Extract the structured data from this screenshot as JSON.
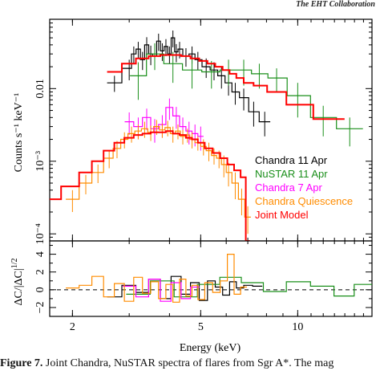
{
  "page": {
    "header_fragment": "The EHT Collaboration",
    "caption_prefix": "Figure 7.",
    "caption_text": " Joint Chandra, NuSTAR spectra of flares from Sgr A*. The mag"
  },
  "chart_data": [
    {
      "type": "line",
      "panel": "spectrum",
      "xlabel": "Energy (keV)",
      "ylabel": "Counts s⁻¹ keV⁻¹",
      "xscale": "log",
      "yscale": "log",
      "xlim": [
        1.7,
        17
      ],
      "ylim": [
        8e-05,
        0.09
      ],
      "x_ticks": [
        {
          "v": 2,
          "label": "2"
        },
        {
          "v": 5,
          "label": "5"
        },
        {
          "v": 10,
          "label": "10"
        }
      ],
      "y_ticks": [
        {
          "v": 0.01,
          "label": "0.01"
        },
        {
          "v": 0.001,
          "label": "10⁻³"
        },
        {
          "v": 0.0001,
          "label": "10⁻⁴"
        }
      ],
      "legend_position": "lower-right",
      "series": [
        {
          "name": "Chandra 11 Apr",
          "color": "#000000",
          "style": "step",
          "x": [
            2.7,
            3.0,
            3.1,
            3.2,
            3.3,
            3.4,
            3.5,
            3.6,
            3.7,
            3.8,
            3.9,
            4.0,
            4.1,
            4.2,
            4.3,
            4.5,
            4.7,
            4.9,
            5.2,
            5.5,
            5.8,
            6.1,
            6.4,
            6.8,
            7.3,
            7.9
          ],
          "y": [
            0.012,
            0.019,
            0.03,
            0.035,
            0.025,
            0.04,
            0.03,
            0.028,
            0.045,
            0.033,
            0.038,
            0.03,
            0.05,
            0.032,
            0.035,
            0.028,
            0.03,
            0.025,
            0.02,
            0.018,
            0.015,
            0.012,
            0.009,
            0.0075,
            0.0048,
            0.0035
          ],
          "yerr": [
            0.003,
            0.006,
            0.008,
            0.009,
            0.007,
            0.011,
            0.009,
            0.008,
            0.012,
            0.009,
            0.01,
            0.008,
            0.013,
            0.009,
            0.009,
            0.008,
            0.008,
            0.007,
            0.006,
            0.005,
            0.005,
            0.004,
            0.003,
            0.0025,
            0.0018,
            0.0013
          ]
        },
        {
          "name": "NuSTAR 11 Apr",
          "color": "#1a8f1a",
          "style": "step",
          "x": [
            3.2,
            3.6,
            4.1,
            4.7,
            5.4,
            6.1,
            6.8,
            7.6,
            8.6,
            10.0,
            12.0,
            14.5
          ],
          "y": [
            0.015,
            0.03,
            0.022,
            0.018,
            0.017,
            0.018,
            0.018,
            0.016,
            0.014,
            0.008,
            0.004,
            0.0028
          ],
          "yerr": [
            0.008,
            0.012,
            0.01,
            0.008,
            0.007,
            0.007,
            0.007,
            0.006,
            0.005,
            0.004,
            0.0018,
            0.0012
          ]
        },
        {
          "name": "Chandra 7 Apr",
          "color": "#ff00ff",
          "style": "step",
          "x": [
            3.0,
            3.2,
            3.4,
            3.6,
            3.8,
            4.0,
            4.2,
            4.4,
            4.6,
            4.8,
            5.0
          ],
          "y": [
            0.0035,
            0.003,
            0.004,
            0.0028,
            0.0032,
            0.0055,
            0.0042,
            0.003,
            0.0026,
            0.0024,
            0.0022
          ],
          "yerr": [
            0.0012,
            0.001,
            0.0013,
            0.001,
            0.0011,
            0.0018,
            0.0014,
            0.001,
            0.0009,
            0.0008,
            0.0008
          ]
        },
        {
          "name": "Chandra Quiescence",
          "color": "#ff8c00",
          "style": "step",
          "x": [
            2.0,
            2.2,
            2.4,
            2.6,
            2.75,
            2.9,
            3.05,
            3.2,
            3.35,
            3.5,
            3.65,
            3.8,
            3.95,
            4.1,
            4.25,
            4.4,
            4.55,
            4.7,
            4.9,
            5.1,
            5.3,
            5.5,
            5.7,
            5.9,
            6.1,
            6.4,
            6.7,
            7.0
          ],
          "y": [
            0.0003,
            0.0005,
            0.0007,
            0.0011,
            0.0015,
            0.002,
            0.0024,
            0.0026,
            0.0028,
            0.0025,
            0.003,
            0.0027,
            0.0029,
            0.0024,
            0.0026,
            0.0022,
            0.0023,
            0.002,
            0.0018,
            0.0016,
            0.0014,
            0.0012,
            0.0011,
            0.0009,
            0.0007,
            0.0005,
            0.0003,
            0.00017
          ],
          "yerr": [
            0.0001,
            0.00015,
            0.0002,
            0.0003,
            0.0004,
            0.0005,
            0.0006,
            0.0006,
            0.0007,
            0.0006,
            0.0007,
            0.0006,
            0.0007,
            0.0006,
            0.0006,
            0.0005,
            0.0005,
            0.0005,
            0.0004,
            0.0004,
            0.0004,
            0.0003,
            0.0003,
            0.0003,
            0.00025,
            0.0002,
            0.00012,
            7e-05
          ]
        },
        {
          "name": "Joint Model",
          "color": "#ff0000",
          "style": "step",
          "x": [
            2.7,
            3.0,
            3.3,
            3.6,
            3.9,
            4.2,
            4.5,
            4.8,
            5.1,
            5.4,
            5.7,
            6.0,
            6.3,
            6.6,
            7.0,
            7.6,
            8.5,
            10.0,
            12.5
          ],
          "y": [
            0.017,
            0.022,
            0.026,
            0.028,
            0.029,
            0.029,
            0.028,
            0.026,
            0.024,
            0.022,
            0.02,
            0.018,
            0.016,
            0.014,
            0.012,
            0.011,
            0.009,
            0.006,
            0.0038
          ]
        },
        {
          "name": "Joint Model (quiescence)",
          "color": "#ff0000",
          "style": "step",
          "x": [
            1.7,
            2.0,
            2.2,
            2.4,
            2.6,
            2.8,
            3.0,
            3.2,
            3.4,
            3.6,
            3.8,
            4.0,
            4.2,
            4.4,
            4.6,
            4.8,
            5.0,
            5.3,
            5.6,
            5.9,
            6.2,
            6.5,
            6.8,
            7.0
          ],
          "y": [
            0.0003,
            0.00045,
            0.0007,
            0.001,
            0.0014,
            0.0018,
            0.0021,
            0.0023,
            0.0024,
            0.0025,
            0.0025,
            0.0026,
            0.0024,
            0.0023,
            0.0021,
            0.002,
            0.0018,
            0.0015,
            0.0013,
            0.0011,
            0.0009,
            0.00075,
            0.0006,
            8e-05
          ]
        }
      ],
      "legend": [
        {
          "label": "Chandra 11 Apr",
          "color": "#000000"
        },
        {
          "label": "NuSTAR 11 Apr",
          "color": "#1a8f1a"
        },
        {
          "label": "Chandra 7 Apr",
          "color": "#ff00ff"
        },
        {
          "label": "Chandra Quiescence",
          "color": "#ff8c00"
        },
        {
          "label": "Joint Model",
          "color": "#ff0000"
        }
      ]
    },
    {
      "type": "line",
      "panel": "residuals",
      "ylabel": "ΔC/|ΔC|^1/2",
      "ylabel_main": "ΔC/|ΔC|",
      "ylabel_sup": "1/2",
      "xscale": "log",
      "xlim": [
        1.7,
        17
      ],
      "ylim": [
        -3,
        5.5
      ],
      "y_ticks": [
        {
          "v": 4,
          "label": "4"
        },
        {
          "v": 2,
          "label": "2"
        },
        {
          "v": 0,
          "label": "0"
        },
        {
          "v": -2,
          "label": "−2"
        }
      ],
      "reference_line": 0,
      "series": [
        {
          "name": "Chandra 11 Apr",
          "color": "#000000",
          "x": [
            2.7,
            3.0,
            3.3,
            3.6,
            3.9,
            4.2,
            4.5,
            4.8,
            5.1,
            5.4,
            5.7,
            6.0,
            6.3,
            6.6,
            7.0,
            7.5
          ],
          "y": [
            -0.8,
            0.5,
            -0.3,
            1.2,
            -1.0,
            1.5,
            -0.5,
            0.8,
            -1.2,
            1.0,
            0.3,
            -0.6,
            0.9,
            0.2,
            0.5,
            0.4
          ]
        },
        {
          "name": "NuSTAR 11 Apr",
          "color": "#1a8f1a",
          "x": [
            3.2,
            3.8,
            4.5,
            5.3,
            6.2,
            7.2,
            8.5,
            10.0,
            12.0,
            14.0,
            16.0
          ],
          "y": [
            -0.5,
            1.0,
            -0.8,
            0.6,
            1.4,
            0.8,
            -0.2,
            0.9,
            0.4,
            -0.7,
            0.6
          ]
        },
        {
          "name": "Chandra 7 Apr",
          "color": "#ff00ff",
          "x": [
            3.0,
            3.3,
            3.6,
            3.9,
            4.2,
            4.5,
            4.8
          ],
          "y": [
            0.4,
            -0.8,
            1.2,
            -1.3,
            0.8,
            -1.0,
            0.3
          ]
        },
        {
          "name": "Chandra Quiescence",
          "color": "#ff8c00",
          "x": [
            2.0,
            2.2,
            2.4,
            2.6,
            2.8,
            3.0,
            3.2,
            3.4,
            3.6,
            3.8,
            4.0,
            4.2,
            4.4,
            4.6,
            4.8,
            5.0,
            5.3,
            5.6,
            5.9,
            6.2,
            6.5,
            6.8
          ],
          "y": [
            0.2,
            0.5,
            1.5,
            -0.8,
            0.7,
            -1.3,
            1.4,
            -0.4,
            0.9,
            -1.0,
            0.6,
            -1.4,
            1.2,
            -0.7,
            0.5,
            -1.1,
            0.8,
            -0.3,
            1.0,
            4.0,
            -0.5,
            0.3
          ]
        }
      ]
    }
  ]
}
